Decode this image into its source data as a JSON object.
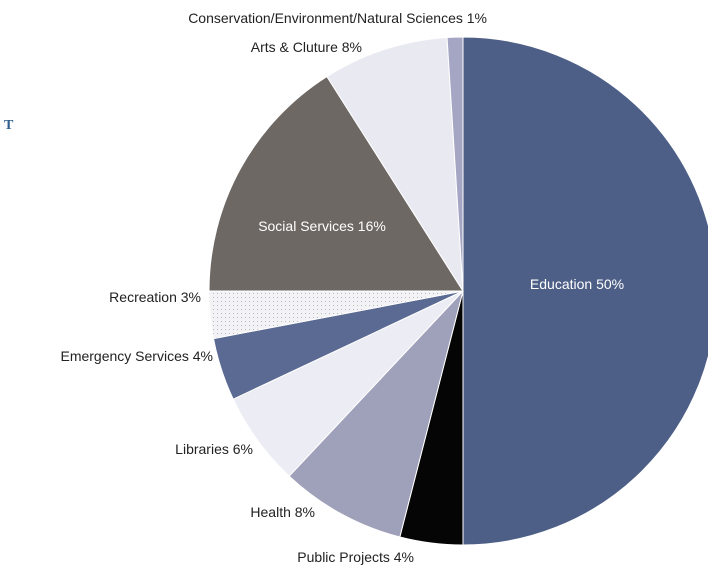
{
  "page": {
    "clipped_text": "T"
  },
  "colors": {
    "education": "#4d5f86",
    "public_projects": "#050505",
    "health": "#9fa0b9",
    "libraries": "#ececf4",
    "emergency_services": "#5b6a93",
    "recreation": "#f3f3f6",
    "social_services": "#6e6864",
    "arts_culture": "#e9e9f1",
    "conservation": "#a4a6c4",
    "label_dark": "#222222",
    "label_light": "#ffffff"
  },
  "chart_data": {
    "type": "pie",
    "title": "",
    "unit": "%",
    "slices": [
      {
        "label": "Education 50%",
        "category": "Education",
        "value": 50
      },
      {
        "label": "Public Projects 4%",
        "category": "Public Projects",
        "value": 4
      },
      {
        "label": "Health 8%",
        "category": "Health",
        "value": 8
      },
      {
        "label": "Libraries 6%",
        "category": "Libraries",
        "value": 6
      },
      {
        "label": "Emergency Services 4%",
        "category": "Emergency Services",
        "value": 4
      },
      {
        "label": "Recreation 3%",
        "category": "Recreation",
        "value": 3
      },
      {
        "label": "Social Services 16%",
        "category": "Social Services",
        "value": 16
      },
      {
        "label": "Arts & Cluture 8%",
        "category": "Arts & Cluture",
        "value": 8
      },
      {
        "label": "Conservation/Environment/Natural Sciences 1%",
        "category": "Conservation/Environment/Natural Sciences",
        "value": 1
      }
    ],
    "order": "clockwise from top",
    "legend": "none (labels placed beside slices)"
  }
}
